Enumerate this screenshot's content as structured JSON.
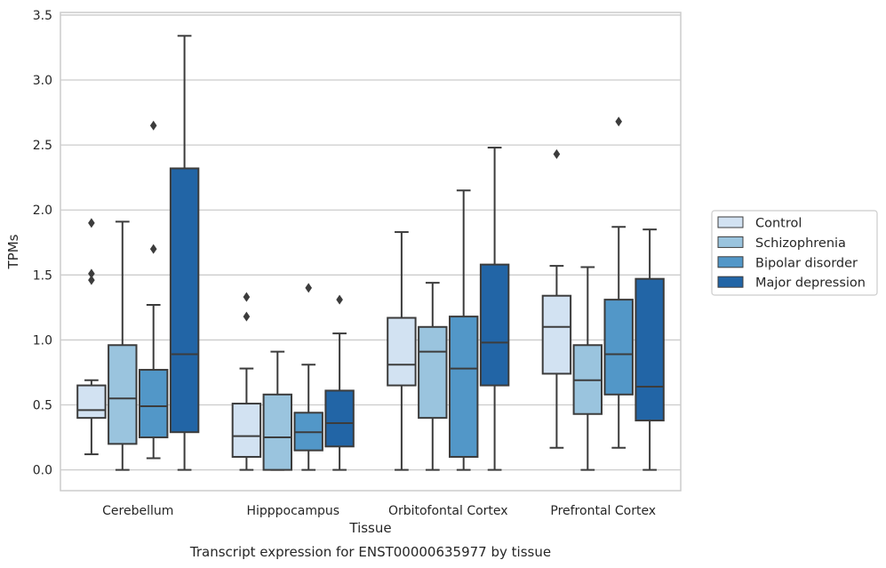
{
  "chart_data": {
    "type": "box",
    "title": "",
    "caption": "Transcript expression for ENST00000635977 by tissue",
    "xlabel": "Tissue",
    "ylabel": "TPMs",
    "ylim": [
      -0.16,
      3.52
    ],
    "yticks": [
      "0.0",
      "0.5",
      "1.0",
      "1.5",
      "2.0",
      "2.5",
      "3.0",
      "3.5"
    ],
    "grid": "horizontal",
    "legend_placement": "right",
    "categories": [
      "Cerebellum",
      "Hipppocampus",
      "Orbitofontal Cortex",
      "Prefrontal Cortex"
    ],
    "series": [
      {
        "name": "Control",
        "color": "#d2e2f2",
        "boxes": [
          {
            "whislo": 0.12,
            "q1": 0.4,
            "med": 0.46,
            "q3": 0.65,
            "whishi": 0.69,
            "fliers": [
              1.9,
              1.51,
              1.46
            ]
          },
          {
            "whislo": 0.0,
            "q1": 0.1,
            "med": 0.26,
            "q3": 0.51,
            "whishi": 0.78,
            "fliers": [
              1.33,
              1.18
            ]
          },
          {
            "whislo": 0.0,
            "q1": 0.65,
            "med": 0.81,
            "q3": 1.17,
            "whishi": 1.83,
            "fliers": []
          },
          {
            "whislo": 0.17,
            "q1": 0.74,
            "med": 1.1,
            "q3": 1.34,
            "whishi": 1.57,
            "fliers": [
              2.43
            ]
          }
        ]
      },
      {
        "name": "Schizophrenia",
        "color": "#9ac4de",
        "boxes": [
          {
            "whislo": 0.0,
            "q1": 0.2,
            "med": 0.55,
            "q3": 0.96,
            "whishi": 1.91,
            "fliers": []
          },
          {
            "whislo": 0.0,
            "q1": 0.0,
            "med": 0.25,
            "q3": 0.58,
            "whishi": 0.91,
            "fliers": []
          },
          {
            "whislo": 0.0,
            "q1": 0.4,
            "med": 0.91,
            "q3": 1.1,
            "whishi": 1.44,
            "fliers": []
          },
          {
            "whislo": 0.0,
            "q1": 0.43,
            "med": 0.69,
            "q3": 0.96,
            "whishi": 1.56,
            "fliers": []
          }
        ]
      },
      {
        "name": "Bipolar disorder",
        "color": "#5297c8",
        "boxes": [
          {
            "whislo": 0.09,
            "q1": 0.25,
            "med": 0.49,
            "q3": 0.77,
            "whishi": 1.27,
            "fliers": [
              2.65,
              1.7
            ]
          },
          {
            "whislo": 0.0,
            "q1": 0.15,
            "med": 0.29,
            "q3": 0.44,
            "whishi": 0.81,
            "fliers": [
              1.4
            ]
          },
          {
            "whislo": 0.0,
            "q1": 0.1,
            "med": 0.78,
            "q3": 1.18,
            "whishi": 2.15,
            "fliers": []
          },
          {
            "whislo": 0.17,
            "q1": 0.58,
            "med": 0.89,
            "q3": 1.31,
            "whishi": 1.87,
            "fliers": [
              2.68
            ]
          }
        ]
      },
      {
        "name": "Major depression",
        "color": "#2265a6",
        "boxes": [
          {
            "whislo": 0.0,
            "q1": 0.29,
            "med": 0.89,
            "q3": 2.32,
            "whishi": 3.34,
            "fliers": []
          },
          {
            "whislo": 0.0,
            "q1": 0.18,
            "med": 0.36,
            "q3": 0.61,
            "whishi": 1.05,
            "fliers": [
              1.31
            ]
          },
          {
            "whislo": 0.0,
            "q1": 0.65,
            "med": 0.98,
            "q3": 1.58,
            "whishi": 2.48,
            "fliers": []
          },
          {
            "whislo": 0.0,
            "q1": 0.38,
            "med": 0.64,
            "q3": 1.47,
            "whishi": 1.85,
            "fliers": []
          }
        ]
      }
    ]
  }
}
